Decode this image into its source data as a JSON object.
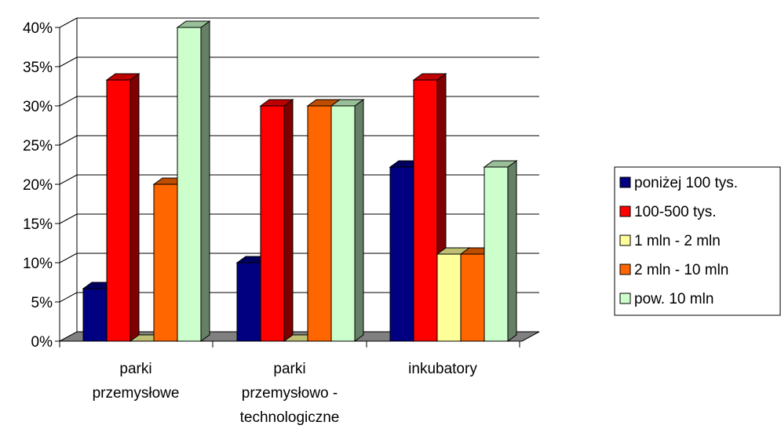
{
  "chart_data": {
    "type": "bar",
    "title": "",
    "xlabel": "",
    "ylabel": "",
    "ylim": [
      0,
      0.4
    ],
    "yticks": [
      0,
      0.05,
      0.1,
      0.15,
      0.2,
      0.25,
      0.3,
      0.35,
      0.4
    ],
    "ytick_labels": [
      "0%",
      "5%",
      "10%",
      "15%",
      "20%",
      "25%",
      "30%",
      "35%",
      "40%"
    ],
    "grid": true,
    "legend_position": "right",
    "style": "3d-clustered-column",
    "categories": [
      [
        "parki",
        "przemysłowe"
      ],
      [
        "parki",
        "przemysłowo -",
        "technologiczne"
      ],
      [
        "inkubatory"
      ]
    ],
    "series": [
      {
        "name": "poniżej 100 tys.",
        "color": "#000080",
        "values": [
          0.067,
          0.1,
          0.222
        ]
      },
      {
        "name": "100-500 tys.",
        "color": "#ff0000",
        "values": [
          0.333,
          0.3,
          0.333
        ]
      },
      {
        "name": "1 mln - 2 mln",
        "color": "#ffff99",
        "values": [
          0.0,
          0.0,
          0.111
        ]
      },
      {
        "name": "2 mln - 10 mln",
        "color": "#ff6600",
        "values": [
          0.2,
          0.3,
          0.111
        ]
      },
      {
        "name": "pow. 10 mln",
        "color": "#ccffcc",
        "values": [
          0.4,
          0.3,
          0.222
        ]
      }
    ]
  },
  "colors": {
    "floor": "#808080",
    "gridline": "#000000",
    "background": "#ffffff"
  }
}
